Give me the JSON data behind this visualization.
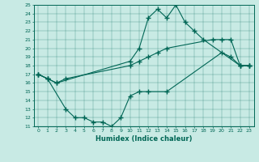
{
  "xlabel": "Humidex (Indice chaleur)",
  "background_color": "#c8eae4",
  "line_color": "#006655",
  "xlim": [
    -0.5,
    23.5
  ],
  "ylim": [
    11,
    25
  ],
  "yticks": [
    11,
    12,
    13,
    14,
    15,
    16,
    17,
    18,
    19,
    20,
    21,
    22,
    23,
    24,
    25
  ],
  "xticks": [
    0,
    1,
    2,
    3,
    4,
    5,
    6,
    7,
    8,
    9,
    10,
    11,
    12,
    13,
    14,
    15,
    16,
    17,
    18,
    19,
    20,
    21,
    22,
    23
  ],
  "line1_x": [
    0,
    1,
    3,
    4,
    5,
    6,
    7,
    8,
    9,
    10,
    11,
    12,
    14,
    20,
    21,
    22,
    23
  ],
  "line1_y": [
    17,
    16.5,
    13,
    12,
    12,
    11.5,
    11.5,
    11,
    12,
    14.5,
    15,
    15,
    15,
    19.5,
    19,
    18,
    18
  ],
  "line2_x": [
    0,
    1,
    2,
    10,
    11,
    12,
    13,
    14,
    15,
    16,
    17,
    18,
    22,
    23
  ],
  "line2_y": [
    17,
    16.5,
    16,
    18.5,
    20,
    23.5,
    24.5,
    23.5,
    25,
    23,
    22,
    21,
    18,
    18
  ],
  "line3_x": [
    0,
    1,
    2,
    3,
    10,
    11,
    12,
    13,
    14,
    19,
    20,
    21,
    22,
    23
  ],
  "line3_y": [
    17,
    16.5,
    16,
    16.5,
    18,
    18.5,
    19,
    19.5,
    20,
    21,
    21,
    21,
    18,
    18
  ]
}
